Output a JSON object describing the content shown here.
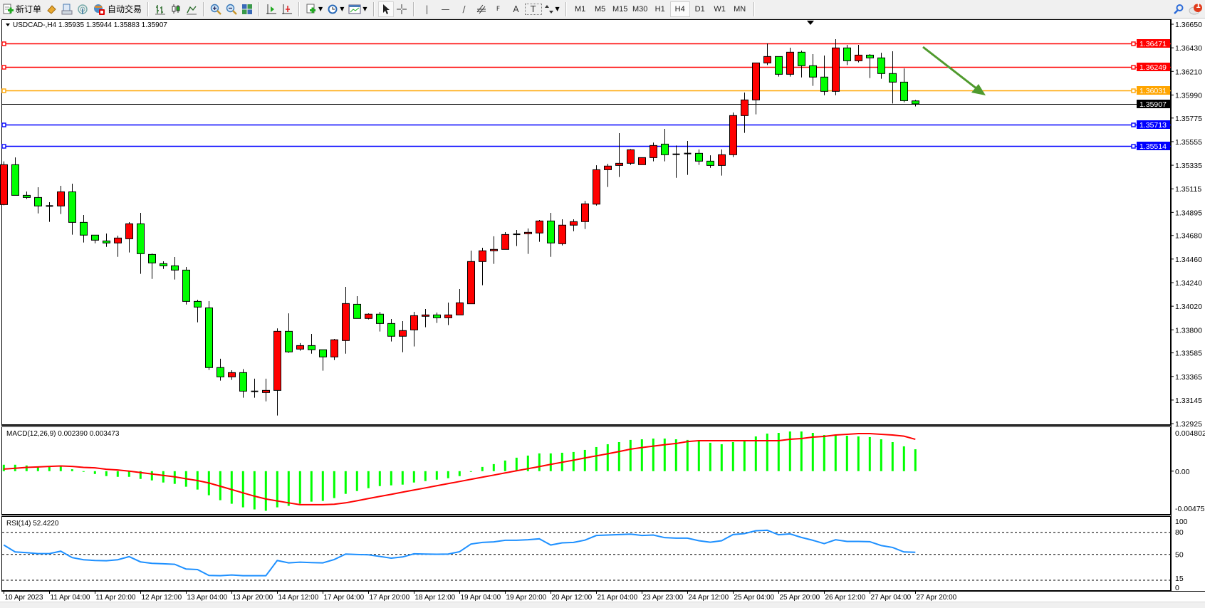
{
  "toolbar": {
    "new_order_label": "新订单",
    "auto_trading_label": "自动交易",
    "tools": [
      "metaeditor-icon",
      "market-watch-icon",
      "signals-icon"
    ],
    "chart_types": [
      "bar-chart-icon",
      "candlestick-icon",
      "line-chart-icon"
    ],
    "zoom_tools": [
      "zoom-in-icon",
      "zoom-out-icon",
      "tile-windows-icon"
    ],
    "scroll_tools": [
      "chart-shift-icon",
      "auto-scroll-icon"
    ],
    "drawing_tools": {
      "vline": "|",
      "hline": "—",
      "trend": "/",
      "fibo_label": "F",
      "text_label": "A",
      "text_label2": "T"
    },
    "timeframes": [
      "M1",
      "M5",
      "M15",
      "M30",
      "H1",
      "H4",
      "D1",
      "W1",
      "MN"
    ],
    "active_timeframe": "H4",
    "notification_count": "1"
  },
  "symbol_header": "USDCAD-,H4  1.35935 1.35944 1.35883 1.35907",
  "macd_header": "MACD(12,26,9) 0.002390 0.003473",
  "rsi_header": "RSI(14) 52.4220",
  "colors": {
    "bull": "#ff0000",
    "bear": "#00ff00",
    "macd_hist": "#00ff00",
    "macd_signal": "#ff0000",
    "rsi": "#1e90ff",
    "arrow": "#4f9a2d"
  },
  "price_lines": [
    {
      "price": 1.36471,
      "label": "1.36471",
      "color": "#ff0000"
    },
    {
      "price": 1.36249,
      "label": "1.36249",
      "color": "#ff0000"
    },
    {
      "price": 1.36031,
      "label": "1.36031",
      "color": "#ffa500"
    },
    {
      "price": 1.35713,
      "label": "1.35713",
      "color": "#0000ff"
    },
    {
      "price": 1.35514,
      "label": "1.35514",
      "color": "#0000ff"
    }
  ],
  "current_price": {
    "price": 1.35907,
    "label": "1.35907"
  },
  "price_axis": [
    "1.36650",
    "1.36430",
    "1.36210",
    "1.35990",
    "1.35775",
    "1.35555",
    "1.35335",
    "1.35115",
    "1.34895",
    "1.34680",
    "1.34460",
    "1.34240",
    "1.34020",
    "1.33800",
    "1.33585",
    "1.33365",
    "1.33145",
    "1.32925"
  ],
  "macd_axis": [
    "0.004802",
    "0.00",
    "-0.004758"
  ],
  "rsi_axis": [
    "100",
    "80",
    "50",
    "15",
    "0"
  ],
  "time_axis": [
    "10 Apr 2023",
    "11 Apr 04:00",
    "11 Apr 20:00",
    "12 Apr 12:00",
    "13 Apr 04:00",
    "13 Apr 20:00",
    "14 Apr 12:00",
    "17 Apr 04:00",
    "17 Apr 20:00",
    "18 Apr 12:00",
    "19 Apr 04:00",
    "19 Apr 20:00",
    "20 Apr 12:00",
    "21 Apr 04:00",
    "23 Apr 23:00",
    "24 Apr 12:00",
    "25 Apr 04:00",
    "25 Apr 20:00",
    "26 Apr 12:00",
    "27 Apr 04:00",
    "27 Apr 20:00"
  ],
  "chart_data": [
    {
      "type": "candlestick",
      "symbol": "USDCAD-",
      "timeframe": "H4",
      "ylim": [
        1.32912,
        1.3669
      ],
      "grid": false,
      "ohlc": [
        [
          1.34968,
          1.35371,
          1.34961,
          1.3534
        ],
        [
          1.3534,
          1.35408,
          1.35054,
          1.35054
        ],
        [
          1.35054,
          1.3509,
          1.35021,
          1.35034
        ],
        [
          1.35034,
          1.3513,
          1.34886,
          1.34955
        ],
        [
          1.34955,
          1.3499,
          1.34807,
          1.34955
        ],
        [
          1.34955,
          1.35143,
          1.3488,
          1.35087
        ],
        [
          1.35087,
          1.35163,
          1.34687,
          1.34802
        ],
        [
          1.34802,
          1.34871,
          1.34614,
          1.34683
        ],
        [
          1.34683,
          1.34683,
          1.34607,
          1.34636
        ],
        [
          1.34629,
          1.34698,
          1.34574,
          1.3461
        ],
        [
          1.3461,
          1.34678,
          1.34481,
          1.34656
        ],
        [
          1.34649,
          1.34804,
          1.34521,
          1.34789
        ],
        [
          1.34789,
          1.34891,
          1.34322,
          1.3451
        ],
        [
          1.34503,
          1.34512,
          1.34275,
          1.34424
        ],
        [
          1.34417,
          1.34439,
          1.34368,
          1.34397
        ],
        [
          1.34397,
          1.34479,
          1.34269,
          1.34357
        ],
        [
          1.34357,
          1.34386,
          1.34036,
          1.34065
        ],
        [
          1.34065,
          1.34081,
          1.3387,
          1.34012
        ],
        [
          1.34005,
          1.34067,
          1.33426,
          1.33448
        ],
        [
          1.33448,
          1.3353,
          1.33326,
          1.33361
        ],
        [
          1.33361,
          1.33423,
          1.33333,
          1.33401
        ],
        [
          1.33401,
          1.33434,
          1.33167,
          1.33228
        ],
        [
          1.33226,
          1.33344,
          1.33167,
          1.33226
        ],
        [
          1.33215,
          1.33344,
          1.33133,
          1.33235
        ],
        [
          1.33235,
          1.33813,
          1.33001,
          1.33786
        ],
        [
          1.33786,
          1.33954,
          1.33585,
          1.33594
        ],
        [
          1.3362,
          1.33676,
          1.33605,
          1.33653
        ],
        [
          1.33653,
          1.33762,
          1.33578,
          1.33614
        ],
        [
          1.33614,
          1.33614,
          1.33419,
          1.33547
        ],
        [
          1.33547,
          1.33715,
          1.33518,
          1.33707
        ],
        [
          1.337,
          1.342,
          1.33578,
          1.34045
        ],
        [
          1.34038,
          1.34114,
          1.33906,
          1.33906
        ],
        [
          1.33906,
          1.33954,
          1.33897,
          1.33946
        ],
        [
          1.33946,
          1.33968,
          1.33784,
          1.33859
        ],
        [
          1.33859,
          1.33901,
          1.33691,
          1.3374
        ],
        [
          1.3374,
          1.33881,
          1.33591,
          1.33793
        ],
        [
          1.33799,
          1.33968,
          1.33645,
          1.33932
        ],
        [
          1.33926,
          1.33994,
          1.33824,
          1.33939
        ],
        [
          1.33939,
          1.33961,
          1.33864,
          1.33912
        ],
        [
          1.33912,
          1.34054,
          1.33844,
          1.33939
        ],
        [
          1.33939,
          1.3418,
          1.33939,
          1.34052
        ],
        [
          1.34043,
          1.34539,
          1.34043,
          1.34437
        ],
        [
          1.34437,
          1.34565,
          1.34216,
          1.34537
        ],
        [
          1.34537,
          1.34672,
          1.34415,
          1.3455
        ],
        [
          1.3455,
          1.34711,
          1.3455,
          1.34689
        ],
        [
          1.34691,
          1.34731,
          1.34581,
          1.34691
        ],
        [
          1.34696,
          1.34745,
          1.34508,
          1.34709
        ],
        [
          1.34703,
          1.34824,
          1.34621,
          1.34815
        ],
        [
          1.34815,
          1.34891,
          1.34481,
          1.3461
        ],
        [
          1.34603,
          1.34831,
          1.34587,
          1.34776
        ],
        [
          1.34776,
          1.34831,
          1.3472,
          1.34809
        ],
        [
          1.34809,
          1.35003,
          1.3474,
          1.34975
        ],
        [
          1.34972,
          1.35335,
          1.34959,
          1.35293
        ],
        [
          1.35293,
          1.35349,
          1.35132,
          1.35327
        ],
        [
          1.35333,
          1.35634,
          1.35225,
          1.35353
        ],
        [
          1.35353,
          1.35486,
          1.35338,
          1.35479
        ],
        [
          1.3534,
          1.35406,
          1.3534,
          1.35406
        ],
        [
          1.35406,
          1.35546,
          1.35371,
          1.35519
        ],
        [
          1.35532,
          1.35674,
          1.35371,
          1.35433
        ],
        [
          1.35437,
          1.35519,
          1.35218,
          1.35437
        ],
        [
          1.35444,
          1.35561,
          1.35245,
          1.35444
        ],
        [
          1.35446,
          1.35482,
          1.35338,
          1.35373
        ],
        [
          1.35373,
          1.35428,
          1.35311,
          1.35333
        ],
        [
          1.35333,
          1.35482,
          1.35238,
          1.35433
        ],
        [
          1.35433,
          1.35827,
          1.35411,
          1.35798
        ],
        [
          1.35798,
          1.36013,
          1.35637,
          1.35944
        ],
        [
          1.35944,
          1.36289,
          1.35809,
          1.36289
        ],
        [
          1.36289,
          1.36471,
          1.36269,
          1.36349
        ],
        [
          1.36349,
          1.36349,
          1.36161,
          1.36183
        ],
        [
          1.36183,
          1.36431,
          1.36161,
          1.36389
        ],
        [
          1.36389,
          1.36404,
          1.36154,
          1.36263
        ],
        [
          1.36263,
          1.36371,
          1.36075,
          1.36157
        ],
        [
          1.36157,
          1.36358,
          1.35988,
          1.36024
        ],
        [
          1.36024,
          1.36511,
          1.35988,
          1.36429
        ],
        [
          1.36429,
          1.36458,
          1.36269,
          1.36309
        ],
        [
          1.36309,
          1.36458,
          1.36294,
          1.36362
        ],
        [
          1.36362,
          1.36371,
          1.36148,
          1.36336
        ],
        [
          1.36336,
          1.36384,
          1.36141,
          1.3619
        ],
        [
          1.3619,
          1.36398,
          1.35911,
          1.3611
        ],
        [
          1.3611,
          1.36238,
          1.35922,
          1.35937
        ],
        [
          1.35935,
          1.35944,
          1.35883,
          1.35907
        ]
      ]
    },
    {
      "type": "bar",
      "indicator": "MACD(12,26,9)",
      "ylim": [
        -0.004758,
        0.004802
      ],
      "histogram": [
        0.0007,
        0.0007,
        0.00062,
        0.00041,
        0.00052,
        0.00052,
        0.00021,
        -5e-05,
        -0.00031,
        -0.00054,
        -0.00062,
        -0.00062,
        -0.00085,
        -0.00101,
        -0.00124,
        -0.00139,
        -0.0017,
        -0.00201,
        -0.00263,
        -0.00317,
        -0.00356,
        -0.00395,
        -0.00418,
        -0.00433,
        -0.00395,
        -0.00379,
        -0.00356,
        -0.00333,
        -0.00325,
        -0.00294,
        -0.00248,
        -0.00217,
        -0.00186,
        -0.00163,
        -0.00155,
        -0.00147,
        -0.00124,
        -0.00108,
        -0.00093,
        -0.00077,
        -0.00054,
        -5e-05,
        0.00046,
        0.00077,
        0.00116,
        0.00147,
        0.0017,
        0.00194,
        0.00194,
        0.00201,
        0.00209,
        0.00232,
        0.00263,
        0.00294,
        0.00317,
        0.00341,
        0.00348,
        0.00356,
        0.00356,
        0.00348,
        0.00341,
        0.00325,
        0.0031,
        0.00294,
        0.00317,
        0.00325,
        0.00379,
        0.0041,
        0.00418,
        0.00433,
        0.00433,
        0.00418,
        0.00395,
        0.00395,
        0.00387,
        0.00379,
        0.00372,
        0.00348,
        0.00317,
        0.00271,
        0.00239
      ],
      "signal": [
        0.00023,
        0.00031,
        0.00041,
        0.00046,
        0.00052,
        0.00057,
        0.00052,
        0.00041,
        0.00036,
        0.00021,
        0.00013,
        0,
        -0.00015,
        -0.00031,
        -0.00046,
        -0.00062,
        -0.00083,
        -0.00103,
        -0.00129,
        -0.00165,
        -0.00201,
        -0.00237,
        -0.00273,
        -0.00304,
        -0.00325,
        -0.00346,
        -0.00366,
        -0.00366,
        -0.00366,
        -0.00361,
        -0.00346,
        -0.00323,
        -0.00299,
        -0.00276,
        -0.00253,
        -0.00229,
        -0.00206,
        -0.00183,
        -0.00159,
        -0.00136,
        -0.00113,
        -0.00089,
        -0.00066,
        -0.00043,
        -0.00019,
        4e-05,
        0.00027,
        0.0005,
        0.00074,
        0.00097,
        0.0012,
        0.00144,
        0.00167,
        0.0019,
        0.00214,
        0.0024,
        0.00258,
        0.00273,
        0.00289,
        0.00302,
        0.00323,
        0.00333,
        0.00333,
        0.00333,
        0.00333,
        0.00333,
        0.00333,
        0.00333,
        0.00333,
        0.00348,
        0.00356,
        0.00372,
        0.00379,
        0.00395,
        0.00402,
        0.0041,
        0.0041,
        0.00402,
        0.00395,
        0.00382,
        0.003473
      ]
    },
    {
      "type": "line",
      "indicator": "RSI(14)",
      "ylim": [
        0,
        100
      ],
      "levels": [
        80,
        50,
        15
      ],
      "values": [
        62.3,
        52.9,
        51.9,
        50.6,
        50.6,
        53.9,
        45.2,
        42.3,
        41.3,
        41.0,
        42.3,
        46.5,
        39.4,
        37.4,
        36.8,
        36.1,
        29.7,
        29.0,
        21.0,
        20.6,
        21.6,
        20.6,
        20.6,
        20.6,
        41.3,
        38.1,
        39.0,
        38.4,
        38.1,
        42.6,
        50.0,
        49.4,
        49.0,
        46.8,
        44.5,
        46.1,
        50.3,
        50.0,
        49.7,
        50.0,
        53.2,
        63.6,
        65.8,
        66.5,
        68.7,
        68.7,
        69.4,
        70.7,
        62.3,
        65.2,
        65.8,
        68.9,
        75.2,
        75.8,
        76.5,
        77.1,
        75.2,
        75.8,
        72.3,
        71.6,
        71.6,
        68.1,
        66.1,
        68.1,
        76.5,
        77.8,
        81.6,
        82.3,
        76.2,
        77.4,
        72.6,
        68.7,
        64.2,
        69.4,
        67.1,
        67.1,
        66.8,
        61.6,
        59.0,
        52.9,
        52.422
      ]
    }
  ]
}
